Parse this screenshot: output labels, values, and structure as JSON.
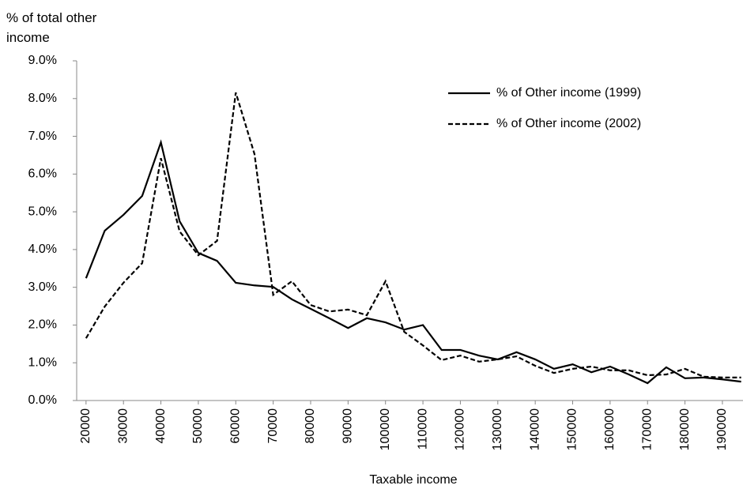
{
  "chart_data": {
    "type": "line",
    "xlabel": "Taxable income",
    "ylabel": "% of total other income",
    "x": [
      20000,
      25000,
      30000,
      35000,
      40000,
      45000,
      50000,
      55000,
      60000,
      65000,
      70000,
      75000,
      80000,
      85000,
      90000,
      95000,
      100000,
      105000,
      110000,
      115000,
      120000,
      125000,
      130000,
      135000,
      140000,
      145000,
      150000,
      155000,
      160000,
      165000,
      170000,
      175000,
      180000,
      185000,
      190000,
      195000
    ],
    "series": [
      {
        "name": "% of Other income (1999)",
        "color": "#000000",
        "dash": "solid",
        "values": [
          3.24,
          4.5,
          4.92,
          5.42,
          6.84,
          4.75,
          3.91,
          3.7,
          3.12,
          3.05,
          3.01,
          2.68,
          2.43,
          2.18,
          1.92,
          2.18,
          2.07,
          1.88,
          2.0,
          1.34,
          1.34,
          1.19,
          1.09,
          1.28,
          1.09,
          0.84,
          0.96,
          0.75,
          0.9,
          0.69,
          0.46,
          0.88,
          0.59,
          0.61,
          0.56,
          0.5
        ]
      },
      {
        "name": "% of Other income (2002)",
        "color": "#000000",
        "dash": "dashed",
        "values": [
          1.65,
          2.49,
          3.12,
          3.64,
          6.42,
          4.48,
          3.85,
          4.23,
          8.16,
          6.53,
          2.8,
          3.16,
          2.53,
          2.36,
          2.41,
          2.26,
          3.16,
          1.82,
          1.46,
          1.07,
          1.19,
          1.03,
          1.09,
          1.17,
          0.92,
          0.73,
          0.84,
          0.9,
          0.8,
          0.8,
          0.67,
          0.69,
          0.84,
          0.63,
          0.61,
          0.61
        ]
      }
    ],
    "xlim": [
      17500,
      195500
    ],
    "xticks": [
      20000,
      30000,
      40000,
      50000,
      60000,
      70000,
      80000,
      90000,
      100000,
      110000,
      120000,
      130000,
      140000,
      150000,
      160000,
      170000,
      180000,
      190000
    ],
    "ylim": [
      0,
      9
    ],
    "yticks": [
      {
        "value": 0,
        "label": "0.0%"
      },
      {
        "value": 1,
        "label": "1.0%"
      },
      {
        "value": 2,
        "label": "2.0%"
      },
      {
        "value": 3,
        "label": "3.0%"
      },
      {
        "value": 4,
        "label": "4.0%"
      },
      {
        "value": 5,
        "label": "5.0%"
      },
      {
        "value": 6,
        "label": "6.0%"
      },
      {
        "value": 7,
        "label": "7.0%"
      },
      {
        "value": 8,
        "label": "8.0%"
      },
      {
        "value": 9,
        "label": "9.0%"
      }
    ],
    "grid": false,
    "legend": "upper right"
  }
}
